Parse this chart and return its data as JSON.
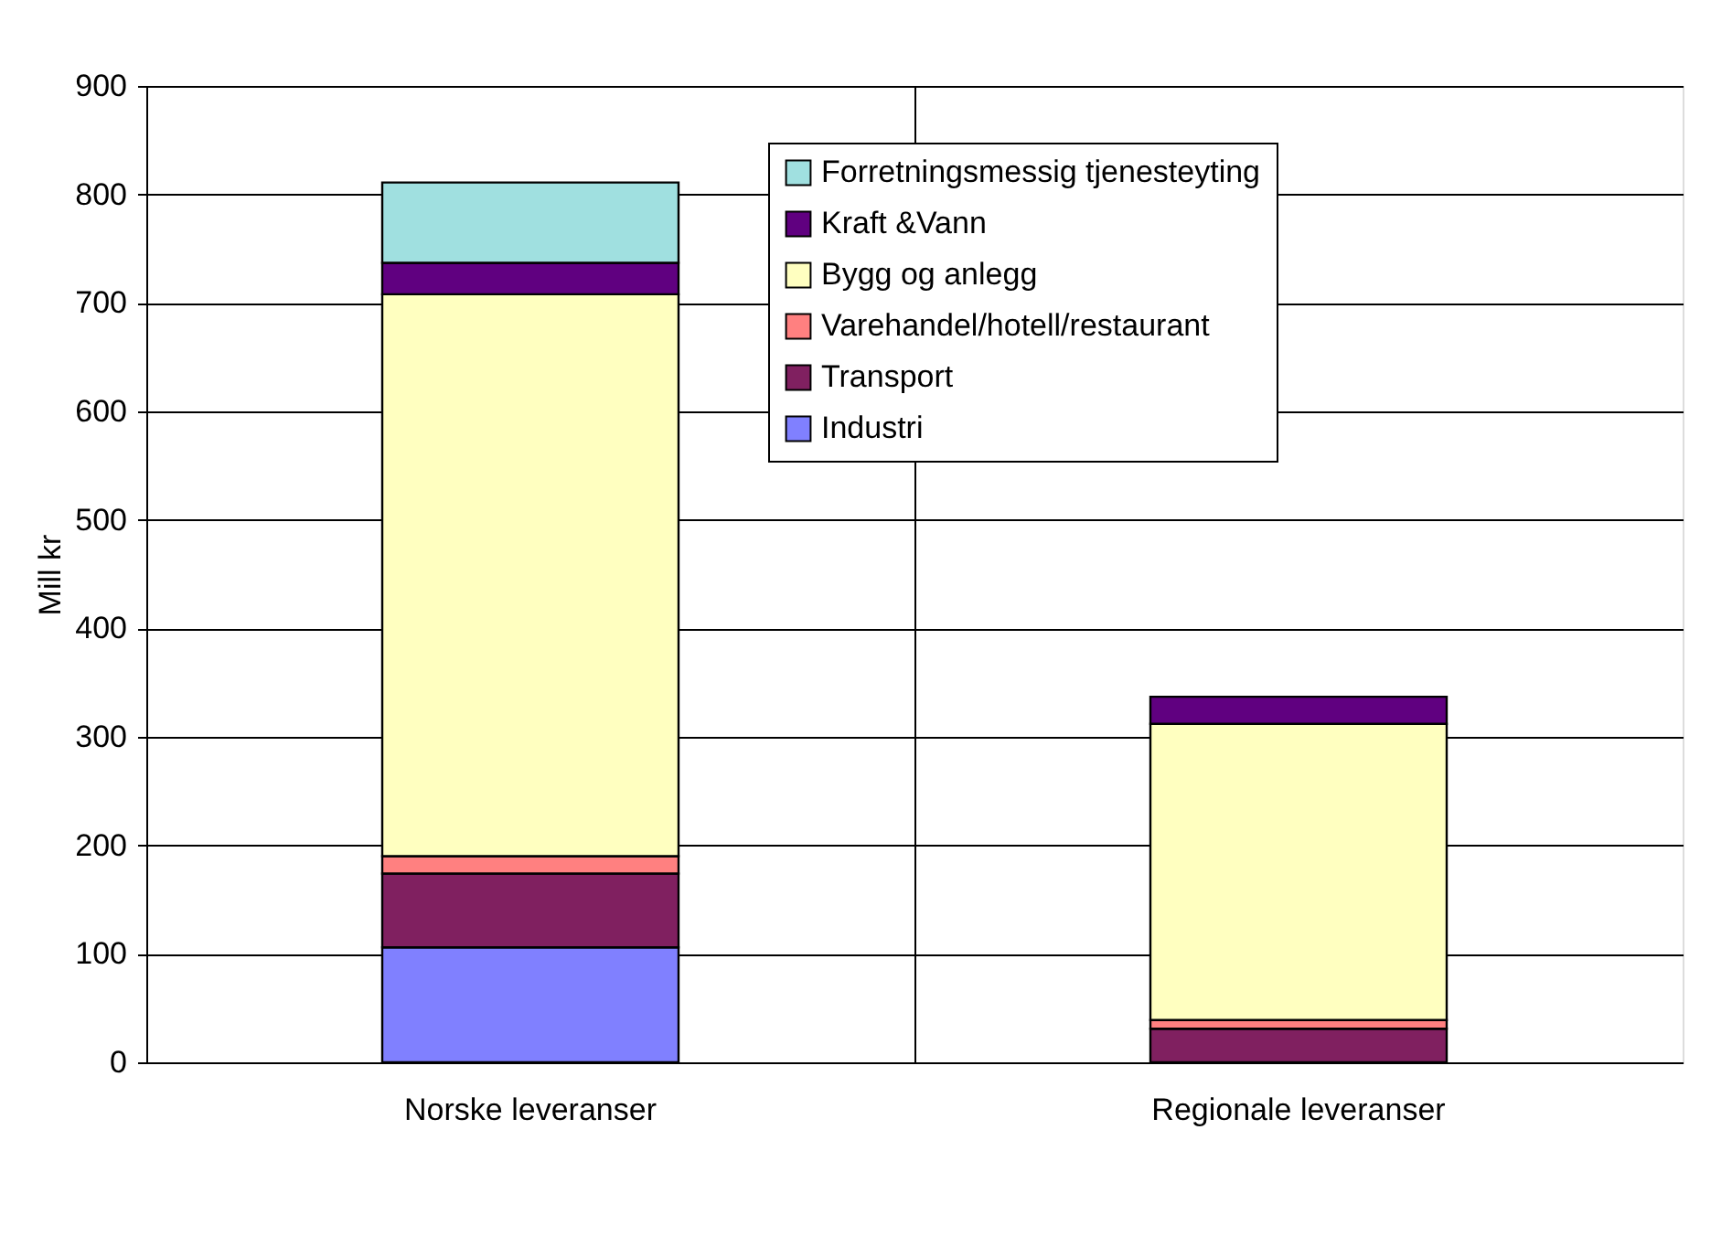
{
  "chart_data": {
    "type": "bar",
    "stacked": true,
    "ylabel": "Mill kr",
    "categories": [
      "Norske leveranser",
      "Regionale leveranser"
    ],
    "series": [
      {
        "name": "Industri",
        "color": "#8080ff",
        "values": [
          106,
          0
        ]
      },
      {
        "name": "Transport",
        "color": "#802060",
        "values": [
          68,
          31
        ]
      },
      {
        "name": "Varehandel/hotell/restaurant",
        "color": "#ff8080",
        "values": [
          16,
          8
        ]
      },
      {
        "name": "Bygg og anlegg",
        "color": "#ffffc0",
        "values": [
          518,
          273
        ]
      },
      {
        "name": "Kraft &Vann",
        "color": "#600080",
        "values": [
          29,
          25
        ]
      },
      {
        "name": "Forretningsmessig tjenesteyting",
        "color": "#a0e0e0",
        "values": [
          74,
          0
        ]
      }
    ],
    "ylim": [
      0,
      900
    ],
    "yticks": [
      0,
      100,
      200,
      300,
      400,
      500,
      600,
      700,
      800,
      900
    ],
    "grid": true,
    "legend": "top right"
  }
}
